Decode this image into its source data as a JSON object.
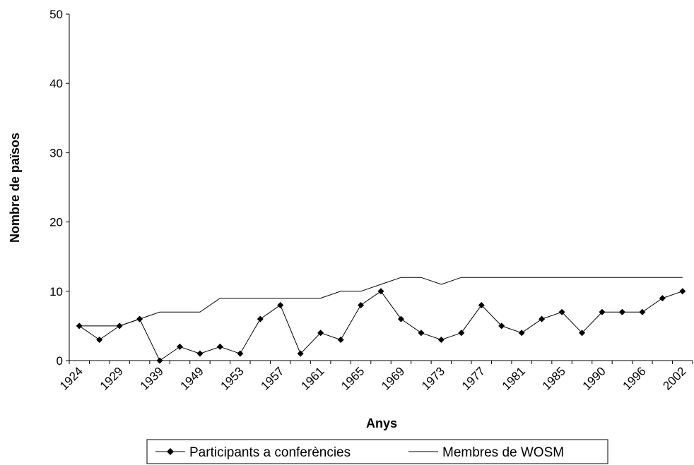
{
  "chart_data": {
    "type": "line",
    "title": "",
    "xlabel": "Anys",
    "ylabel": "Nombre de països",
    "ylim": [
      0,
      50
    ],
    "yticks": [
      0,
      10,
      20,
      30,
      40,
      50
    ],
    "xtick_labels": [
      "1924",
      "1929",
      "1939",
      "1949",
      "1953",
      "1957",
      "1961",
      "1965",
      "1969",
      "1973",
      "1977",
      "1981",
      "1985",
      "1990",
      "1996",
      "2002"
    ],
    "grid": false,
    "legend_position": "bottom",
    "colors": {
      "line": "#000000",
      "background": "#ffffff"
    },
    "series": [
      {
        "name": "Participants a conferències",
        "marker": "diamond",
        "values": [
          5,
          3,
          5,
          6,
          0,
          2,
          1,
          2,
          1,
          6,
          8,
          1,
          4,
          3,
          8,
          10,
          6,
          4,
          3,
          4,
          8,
          5,
          4,
          6,
          7,
          4,
          7,
          7,
          7,
          9,
          10
        ]
      },
      {
        "name": "Membres de WOSM",
        "marker": "none",
        "values": [
          5,
          5,
          5,
          6,
          7,
          7,
          7,
          9,
          9,
          9,
          9,
          9,
          9,
          10,
          10,
          11,
          12,
          12,
          11,
          12,
          12,
          12,
          12,
          12,
          12,
          12,
          12,
          12,
          12,
          12,
          12
        ]
      }
    ]
  }
}
